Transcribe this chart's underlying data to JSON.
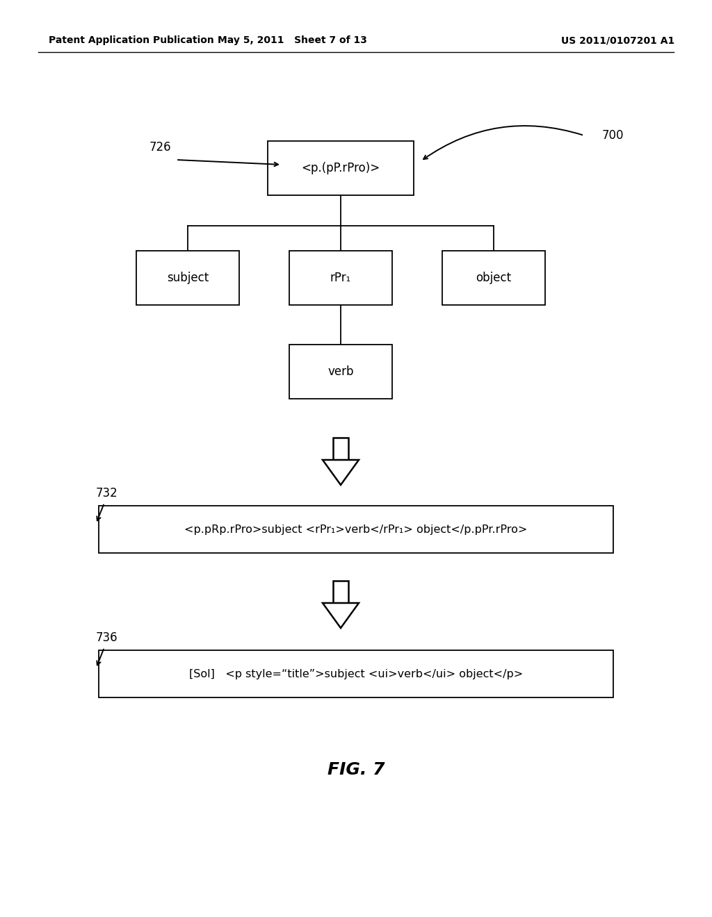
{
  "header_left": "Patent Application Publication",
  "header_mid": "May 5, 2011   Sheet 7 of 13",
  "header_right": "US 2011/0107201 A1",
  "fig_label": "FIG. 7",
  "label_700": "700",
  "label_726": "726",
  "label_732": "732",
  "label_736": "736",
  "root_text": "<p.(pP.rPro)>",
  "child_left": "subject",
  "child_mid": "rPr₁",
  "child_right": "object",
  "grandchild": "verb",
  "box732_text": "<p.pRp.rPro>subject <rPr₁>verb</rPr₁> object</p.pPr.rPro>",
  "box736_text": "[Sol]   <p style=“title”>subject <ui>verb</ui> object</p>",
  "background": "#ffffff",
  "box_edge": "#000000",
  "text_color": "#000000"
}
